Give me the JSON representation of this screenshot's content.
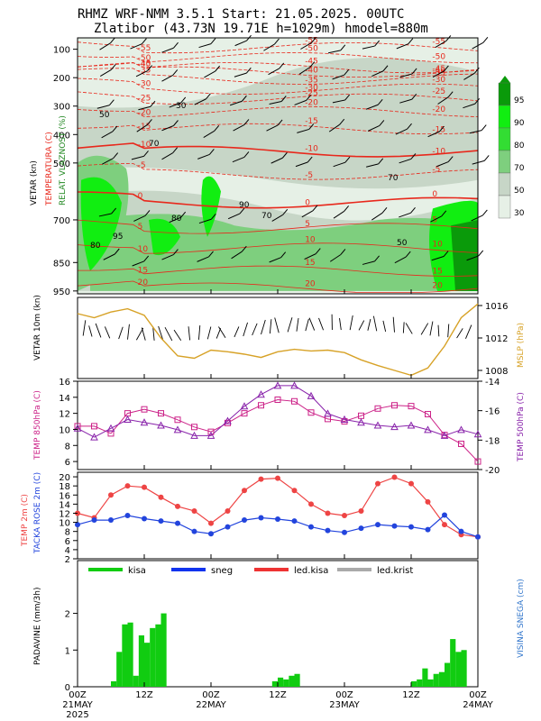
{
  "header": {
    "line1": "RHMZ   WRF-NMM 3.5.1      Start: 21.05.2025.  00UTC",
    "line2": "Zlatibor (43.73N 19.71E h=1029m)  hmodel=880m"
  },
  "colors": {
    "humidity_dark": "#0a9a0a",
    "humidity_bright": "#11ee11",
    "humidity_mid": "#7ecf7e",
    "humidity_light": "#c7d6c7",
    "humidity_pale": "#e6f0e6",
    "temperature": "#e8281c",
    "pressure": "#d7a227",
    "temp850": "#cc2288",
    "temp500": "#8822aa",
    "temp2m": "#ee4444",
    "dewpoint": "#2244dd",
    "precip": "#11cc11",
    "snow_label": "#3377cc"
  },
  "x_axis": {
    "labels": [
      {
        "day": "00Z",
        "date": "21MAY",
        "year": "2025"
      },
      {
        "day": "12Z",
        "date": "",
        "year": ""
      },
      {
        "day": "00Z",
        "date": "22MAY",
        "year": ""
      },
      {
        "day": "12Z",
        "date": "",
        "year": ""
      },
      {
        "day": "00Z",
        "date": "23MAY",
        "year": ""
      },
      {
        "day": "12Z",
        "date": "",
        "year": ""
      },
      {
        "day": "00Z",
        "date": "24MAY",
        "year": ""
      }
    ]
  },
  "chart_data": [
    {
      "type": "heatmap",
      "title": "",
      "ylabel_left": [
        "VETAR (kn)",
        "TEMPERATURA (C)",
        "RELAT. VLAZNOST (%)"
      ],
      "y_ticks": [
        "100",
        "200",
        "300",
        "400",
        "500",
        "700",
        "850",
        "950"
      ],
      "y_tick_values": [
        100,
        200,
        300,
        400,
        500,
        700,
        850,
        950
      ],
      "humidity_legend": [
        "95",
        "90",
        "80",
        "70",
        "50",
        "30"
      ],
      "temperature_contours": [
        "-55",
        "-50",
        "-45",
        "-40",
        "-35",
        "-30",
        "-25",
        "-20",
        "-15",
        "-10",
        "-5",
        "0",
        "5",
        "10",
        "15",
        "20"
      ],
      "humidity_labels": [
        "50",
        "70",
        "80",
        "90",
        "95",
        "30"
      ]
    },
    {
      "type": "line",
      "ylabel_left": "VETAR 10m (kn)",
      "ylabel_right": "MSLP (hPa)",
      "yticks_right": [
        "1016",
        "1012",
        "1008"
      ],
      "ylim": [
        1007,
        1017
      ],
      "x": [
        0,
        3,
        6,
        9,
        12,
        15,
        18,
        21,
        24,
        27,
        30,
        33,
        36,
        39,
        42,
        45,
        48,
        51,
        54,
        57,
        60,
        63,
        66,
        69,
        72
      ],
      "mslp": [
        1015.0,
        1014.5,
        1015.2,
        1015.6,
        1014.8,
        1012.0,
        1009.8,
        1009.5,
        1010.5,
        1010.3,
        1010.0,
        1009.6,
        1010.3,
        1010.6,
        1010.4,
        1010.5,
        1010.2,
        1009.3,
        1008.6,
        1008.0,
        1007.4,
        1008.3,
        1011.0,
        1014.5,
        1016.2
      ]
    },
    {
      "type": "line",
      "ylabel_left": "TEMP 850hPa (C)",
      "ylabel_right": "TEMP 500hPa (C)",
      "yticks_left": [
        "16",
        "14",
        "12",
        "10",
        "8",
        "6"
      ],
      "yticks_right": [
        "-14",
        "-16",
        "-18",
        "-20"
      ],
      "ylim_left": [
        5,
        16
      ],
      "ylim_right": [
        -20,
        -14
      ],
      "x": [
        0,
        3,
        6,
        9,
        12,
        15,
        18,
        21,
        24,
        27,
        30,
        33,
        36,
        39,
        42,
        45,
        48,
        51,
        54,
        57,
        60,
        63,
        66,
        69,
        72
      ],
      "t850": [
        10.4,
        10.4,
        9.5,
        12.0,
        12.5,
        12.0,
        11.2,
        10.3,
        9.7,
        10.8,
        12.0,
        13.0,
        13.7,
        13.5,
        12.1,
        11.3,
        11.0,
        11.7,
        12.6,
        13.0,
        12.9,
        11.9,
        9.3,
        8.2,
        6.0
      ],
      "t500": [
        -17.2,
        -17.8,
        -17.2,
        -16.6,
        -16.8,
        -17.0,
        -17.3,
        -17.7,
        -17.7,
        -16.7,
        -15.7,
        -14.9,
        -14.3,
        -14.3,
        -15.0,
        -16.2,
        -16.6,
        -16.8,
        -17.0,
        -17.1,
        -17.0,
        -17.3,
        -17.7,
        -17.3,
        -17.6
      ]
    },
    {
      "type": "line",
      "ylabel_left": [
        "TEMP 2m (C)",
        "TACKA ROSE 2m (C)"
      ],
      "yticks_left": [
        "20",
        "18",
        "16",
        "14",
        "12",
        "10",
        "8",
        "6",
        "4",
        "2"
      ],
      "ylim": [
        2,
        21
      ],
      "x": [
        0,
        3,
        6,
        9,
        12,
        15,
        18,
        21,
        24,
        27,
        30,
        33,
        36,
        39,
        42,
        45,
        48,
        51,
        54,
        57,
        60,
        63,
        66,
        69,
        72
      ],
      "t2m": [
        12.0,
        11.0,
        16.0,
        18.0,
        17.7,
        15.5,
        13.5,
        12.5,
        9.8,
        12.5,
        17.0,
        19.5,
        19.7,
        17.0,
        14.0,
        12.0,
        11.5,
        12.5,
        18.5,
        19.9,
        18.5,
        14.5,
        9.5,
        7.3,
        6.8
      ],
      "td2m": [
        9.5,
        10.5,
        10.5,
        11.5,
        10.8,
        10.3,
        9.8,
        8.0,
        7.5,
        9.0,
        10.5,
        11.0,
        10.7,
        10.3,
        9.0,
        8.2,
        7.8,
        8.7,
        9.5,
        9.2,
        9.0,
        8.4,
        11.6,
        8.0,
        6.8
      ]
    },
    {
      "type": "bar",
      "ylabel_left": "PADAVINE (mm/3h)",
      "ylabel_right": "VISINA SNEGA (cm)",
      "yticks_left": [
        "2",
        "1",
        "0"
      ],
      "ylim": [
        0,
        2.8
      ],
      "legend": [
        "kisa",
        "sneg",
        "led.kisa",
        "led.krist"
      ],
      "legend_colors": [
        "#11cc11",
        "#1133ee",
        "#ee3333",
        "#aaaaaa"
      ],
      "x": [
        6,
        7,
        8,
        9,
        10,
        11,
        12,
        13,
        14,
        15,
        35,
        36,
        37,
        38,
        39,
        60,
        61,
        62,
        63,
        64,
        65,
        66,
        67,
        68,
        69
      ],
      "values": [
        0.15,
        0.95,
        1.7,
        1.75,
        0.3,
        1.4,
        1.2,
        1.6,
        1.7,
        2.0,
        0.15,
        0.25,
        0.2,
        0.3,
        0.35,
        0.15,
        0.2,
        0.5,
        0.2,
        0.35,
        0.4,
        0.65,
        1.3,
        0.95,
        1.0
      ]
    }
  ]
}
